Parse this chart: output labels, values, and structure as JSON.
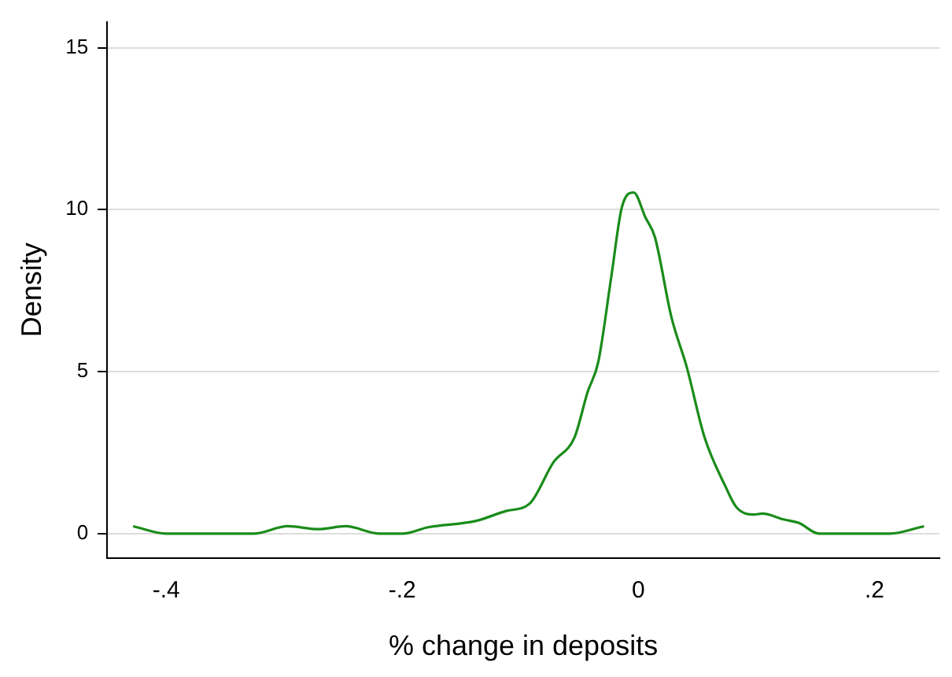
{
  "chart_data": {
    "type": "line",
    "xlabel": "% change in deposits",
    "ylabel": "Density",
    "series": [
      {
        "color": "#1a8c1a",
        "x": [
          -0.428,
          -0.4,
          -0.326,
          -0.297,
          -0.271,
          -0.248,
          -0.219,
          -0.2,
          -0.178,
          -0.138,
          -0.112,
          -0.092,
          -0.072,
          -0.054,
          -0.043,
          -0.034,
          -0.023,
          -0.014,
          -0.004,
          0.006,
          0.014,
          0.028,
          0.041,
          0.056,
          0.074,
          0.083,
          0.098,
          0.105,
          0.123,
          0.136,
          0.153,
          0.213,
          0.242
        ],
        "values": [
          0.23,
          0,
          0,
          0.23,
          0.14,
          0.23,
          0,
          0,
          0.2,
          0.39,
          0.7,
          0.93,
          2.2,
          2.98,
          4.37,
          5.29,
          7.91,
          10.07,
          10.53,
          9.76,
          9.15,
          6.68,
          5.14,
          2.98,
          1.44,
          0.82,
          0.59,
          0.62,
          0.44,
          0.33,
          0,
          0,
          0.23
        ]
      }
    ],
    "xlim": [
      -0.45,
      0.255
    ],
    "xticks": [
      {
        "value": -0.4,
        "label": "-.4"
      },
      {
        "value": -0.2,
        "label": "-.2"
      },
      0,
      {
        "value": 0.2,
        "label": ".2"
      }
    ],
    "ylim": [
      -0.75,
      15.8
    ],
    "yticks": [
      0,
      5,
      10,
      15
    ],
    "grid": "y",
    "marker": "none",
    "line_style": "solid"
  }
}
